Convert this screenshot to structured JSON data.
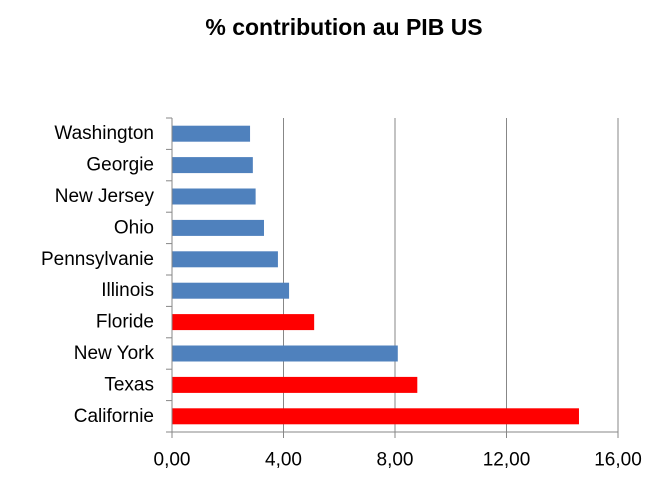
{
  "chart_data": {
    "type": "bar",
    "orientation": "horizontal",
    "title": "% contribution au PIB US",
    "xlabel": "",
    "ylabel": "",
    "categories": [
      "Washington",
      "Georgie",
      "New Jersey",
      "Ohio",
      "Pennsylvanie",
      "Illinois",
      "Floride",
      "New York",
      "Texas",
      "Californie"
    ],
    "values": [
      2.8,
      2.9,
      3.0,
      3.3,
      3.8,
      4.2,
      5.1,
      8.1,
      8.8,
      14.6
    ],
    "bar_colors": [
      "#4f81bd",
      "#4f81bd",
      "#4f81bd",
      "#4f81bd",
      "#4f81bd",
      "#4f81bd",
      "#ff0000",
      "#4f81bd",
      "#ff0000",
      "#ff0000"
    ],
    "xlim": [
      0,
      16
    ],
    "xticks": [
      0,
      4,
      8,
      12,
      16
    ],
    "xtick_labels": [
      "0,00",
      "4,00",
      "8,00",
      "12,00",
      "16,00"
    ],
    "grid": "vertical-major",
    "legend": "none"
  }
}
